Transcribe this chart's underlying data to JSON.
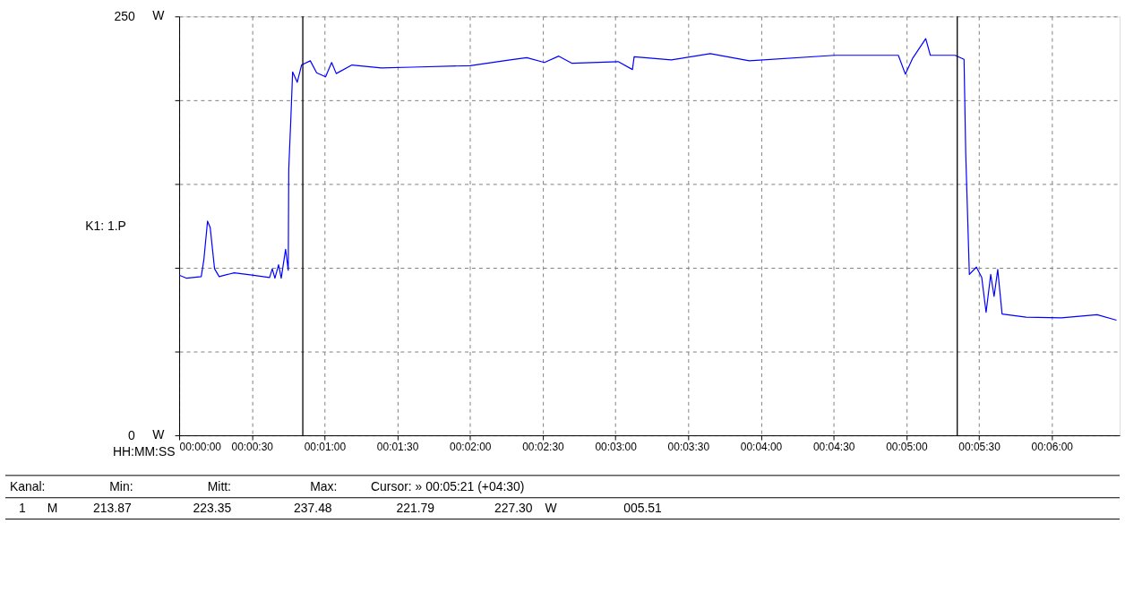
{
  "chart_data": {
    "type": "line",
    "xlabel": "HH:MM:SS",
    "ylabel": "K1: 1.P",
    "x": [
      0,
      2.9,
      9.1,
      10.2,
      11.7,
      12.8,
      14.6,
      16.5,
      22.7,
      30,
      37.3,
      38.4,
      39.5,
      41,
      42.1,
      43.9,
      45,
      45.2,
      46.1,
      46.8,
      48.7,
      50.5,
      54.1,
      56.7,
      60.4,
      62.9,
      64.8,
      71.3,
      83.4,
      95.9,
      120,
      136.5,
      143.4,
      150.7,
      156.6,
      162.1,
      181.1,
      187,
      187.7,
      203,
      219.1,
      235.2,
      270.4,
      296.7,
      299.6,
      302.6,
      308,
      309.9,
      320.1,
      323.8,
      324.5,
      326,
      328.9,
      331.1,
      332.9,
      334.8,
      336.2,
      337.7,
      339.5,
      349.4,
      364,
      378.7,
      386.7
    ],
    "series": [
      {
        "color": "#0000ff",
        "values": [
          95.6,
          93.8,
          94.7,
          105,
          127.8,
          124,
          99.4,
          94.7,
          97,
          95.6,
          94.2,
          99.4,
          93.8,
          101.8,
          93.8,
          111,
          98.5,
          158.6,
          190,
          216.9,
          210.7,
          221,
          223.5,
          216.4,
          214,
          222.5,
          215.9,
          221,
          219.2,
          219.7,
          220.6,
          224,
          225.4,
          222.5,
          226.3,
          222,
          223,
          218.3,
          225.9,
          224,
          227.8,
          223.5,
          226.8,
          226.8,
          215.5,
          225,
          236.7,
          226.8,
          226.8,
          224.4,
          168,
          96,
          100.4,
          94.2,
          73.4,
          96,
          82.9,
          99,
          72.4,
          70.5,
          70.1,
          72,
          68.7
        ]
      }
    ],
    "xlim": [
      0,
      388
    ],
    "xticks": [
      {
        "value": 0,
        "label": "00:00:00"
      },
      {
        "value": 30,
        "label": "00:00:30"
      },
      {
        "value": 60,
        "label": "00:01:00"
      },
      {
        "value": 90,
        "label": "00:01:30"
      },
      {
        "value": 120,
        "label": "00:02:00"
      },
      {
        "value": 150,
        "label": "00:02:30"
      },
      {
        "value": 180,
        "label": "00:03:00"
      },
      {
        "value": 210,
        "label": "00:03:30"
      },
      {
        "value": 240,
        "label": "00:04:00"
      },
      {
        "value": 270,
        "label": "00:04:30"
      },
      {
        "value": 300,
        "label": "00:05:00"
      },
      {
        "value": 330,
        "label": "00:05:30"
      },
      {
        "value": 360,
        "label": "00:06:00"
      }
    ],
    "ylim": [
      0,
      250
    ],
    "yticks": [
      0,
      {
        "value": 50,
        "label": null
      },
      {
        "value": 100,
        "label": null
      },
      {
        "value": 150,
        "label": null
      },
      {
        "value": 200,
        "label": null
      },
      250
    ],
    "grid": true,
    "line_style": "solid",
    "legend": false,
    "ref_lines": [
      {
        "axis": "x",
        "value": 51,
        "color": "#000000"
      },
      {
        "axis": "x",
        "value": 321,
        "color": "#000000"
      }
    ],
    "annotations": [
      "W",
      "W",
      "Kanal:",
      "Min:",
      "Mitt:",
      "Max:",
      "Cursor: » 00:05:21 (+04:30)",
      "1",
      "M",
      "213.87",
      "223.35",
      "237.48",
      "221.79",
      "227.30",
      "W",
      "005.51"
    ]
  }
}
